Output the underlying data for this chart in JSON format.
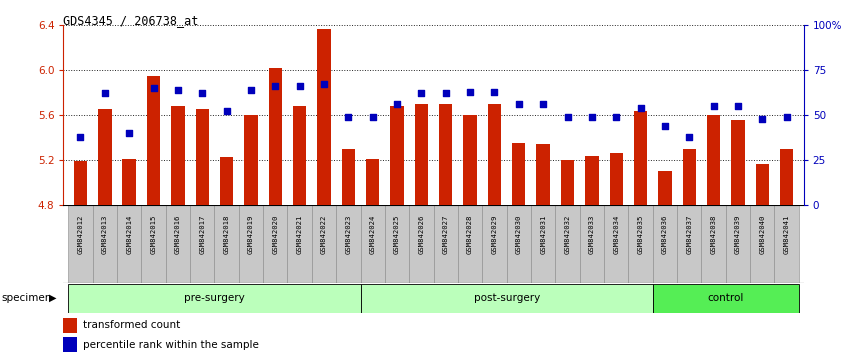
{
  "title": "GDS4345 / 206738_at",
  "samples": [
    "GSM842012",
    "GSM842013",
    "GSM842014",
    "GSM842015",
    "GSM842016",
    "GSM842017",
    "GSM842018",
    "GSM842019",
    "GSM842020",
    "GSM842021",
    "GSM842022",
    "GSM842023",
    "GSM842024",
    "GSM842025",
    "GSM842026",
    "GSM842027",
    "GSM842028",
    "GSM842029",
    "GSM842030",
    "GSM842031",
    "GSM842032",
    "GSM842033",
    "GSM842034",
    "GSM842035",
    "GSM842036",
    "GSM842037",
    "GSM842038",
    "GSM842039",
    "GSM842040",
    "GSM842041"
  ],
  "bar_values": [
    5.19,
    5.65,
    5.21,
    5.95,
    5.68,
    5.65,
    5.23,
    5.6,
    6.02,
    5.68,
    6.36,
    5.3,
    5.21,
    5.68,
    5.7,
    5.7,
    5.6,
    5.7,
    5.35,
    5.34,
    5.2,
    5.24,
    5.26,
    5.64,
    5.1,
    5.3,
    5.6,
    5.56,
    5.17,
    5.3
  ],
  "percentile_values": [
    38,
    62,
    40,
    65,
    64,
    62,
    52,
    64,
    66,
    66,
    67,
    49,
    49,
    56,
    62,
    62,
    63,
    63,
    56,
    56,
    49,
    49,
    49,
    54,
    44,
    38,
    55,
    55,
    48,
    49
  ],
  "ymin": 4.8,
  "ymax": 6.4,
  "yticks_left": [
    4.8,
    5.2,
    5.6,
    6.0,
    6.4
  ],
  "ytick_left_labels": [
    "4.8",
    "5.2",
    "5.6",
    "6.0",
    "6.4"
  ],
  "yticks_right": [
    0,
    25,
    50,
    75,
    100
  ],
  "ytick_right_labels": [
    "0",
    "25",
    "50",
    "75",
    "100%"
  ],
  "bar_color": "#cc2200",
  "dot_color": "#0000bb",
  "bar_baseline": 4.8,
  "group_defs": [
    {
      "label": "pre-surgery",
      "start": 0,
      "end": 11,
      "color": "#bbffbb"
    },
    {
      "label": "post-surgery",
      "start": 12,
      "end": 23,
      "color": "#bbffbb"
    },
    {
      "label": "control",
      "start": 24,
      "end": 29,
      "color": "#55ee55"
    }
  ],
  "specimen_label": "specimen",
  "legend_bar_label": "transformed count",
  "legend_dot_label": "percentile rank within the sample",
  "bg_color": "#ffffff",
  "xtick_bg_color": "#c8c8c8",
  "left_axis_color": "#cc2200",
  "right_axis_color": "#0000bb",
  "grid_linestyle": ":",
  "grid_color": "#222222",
  "grid_linewidth": 0.7
}
